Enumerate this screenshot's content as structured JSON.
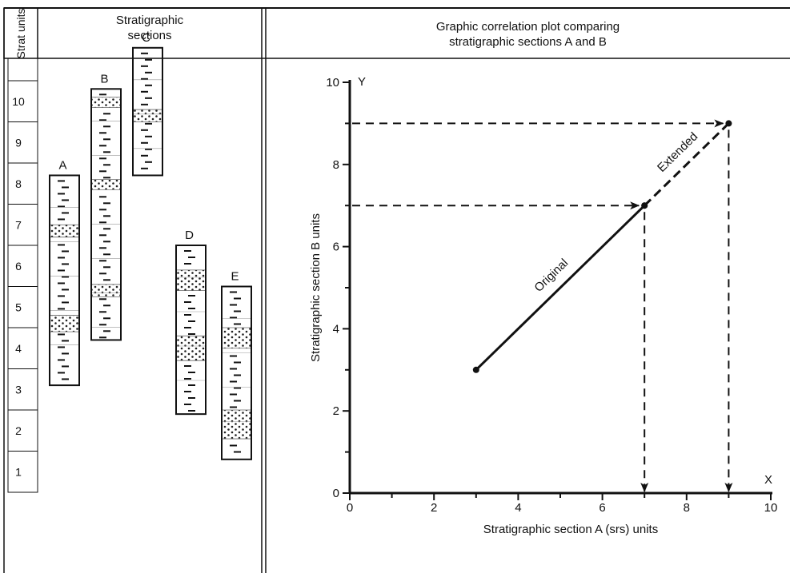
{
  "headers": {
    "strat_units": "Strat units",
    "sections_line1": "Stratigraphic",
    "sections_line2": "sections",
    "plot_line1": "Graphic correlation plot comparing",
    "plot_line2": "stratigraphic sections A and B"
  },
  "strat_units": [
    "10",
    "9",
    "8",
    "7",
    "6",
    "5",
    "4",
    "3",
    "2",
    "1"
  ],
  "columns": [
    {
      "label": "A",
      "base_unit": 2.6,
      "top_unit": 7.7,
      "sand_bands": [
        [
          6.2,
          6.5
        ],
        [
          3.9,
          4.3
        ]
      ]
    },
    {
      "label": "B",
      "base_unit": 3.7,
      "top_unit": 9.8,
      "sand_bands": [
        [
          9.35,
          9.6
        ],
        [
          7.35,
          7.6
        ],
        [
          4.75,
          5.05
        ]
      ]
    },
    {
      "label": "C",
      "base_unit": 7.7,
      "top_unit": 10.8,
      "sand_bands": [
        [
          9.0,
          9.3
        ]
      ]
    },
    {
      "label": "D",
      "base_unit": 1.9,
      "top_unit": 6.0,
      "sand_bands": [
        [
          4.9,
          5.4
        ],
        [
          3.2,
          3.8
        ]
      ]
    },
    {
      "label": "E",
      "base_unit": 0.8,
      "top_unit": 5.0,
      "sand_bands": [
        [
          3.5,
          4.0
        ],
        [
          1.3,
          2.0
        ]
      ]
    }
  ],
  "chart_data": {
    "type": "line",
    "title": "Graphic correlation plot comparing stratigraphic sections A and B",
    "xlabel": "Stratigraphic section A (srs) units",
    "ylabel": "Stratigraphic section B units",
    "x_axis_letter": "X",
    "y_axis_letter": "Y",
    "xlim": [
      0,
      10
    ],
    "ylim": [
      0,
      10
    ],
    "x_ticks": [
      0,
      2,
      4,
      6,
      8,
      10
    ],
    "y_ticks": [
      0,
      2,
      4,
      6,
      8,
      10
    ],
    "series": [
      {
        "name": "Original",
        "style": "solid",
        "points": [
          [
            3,
            3
          ],
          [
            7,
            7
          ]
        ]
      },
      {
        "name": "Extended",
        "style": "dashed",
        "points": [
          [
            7,
            7
          ],
          [
            9,
            9
          ]
        ]
      }
    ],
    "projections": [
      {
        "x": 7,
        "y": 7
      },
      {
        "x": 9,
        "y": 9
      }
    ]
  }
}
